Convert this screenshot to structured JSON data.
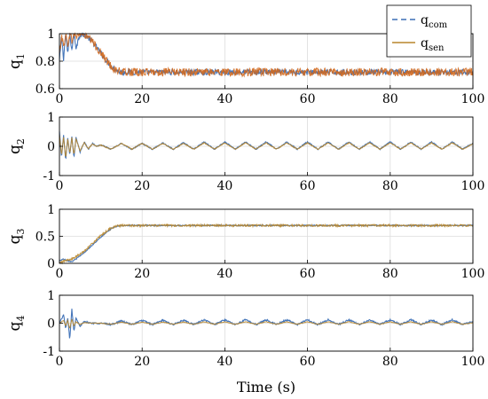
{
  "chart_data": [
    {
      "type": "line",
      "ylabel_main": "q",
      "ylabel_sub": "1",
      "xlim": [
        0,
        100
      ],
      "ylim": [
        0.6,
        1.0
      ],
      "xticks": [
        "0",
        "20",
        "40",
        "60",
        "80",
        "100"
      ],
      "yticks": [
        "0.6",
        "0.8",
        "1"
      ],
      "grid": true,
      "series": [
        {
          "name_main": "q",
          "name_sub": "com",
          "color": "#3b6fb6",
          "x": [
            0,
            0.5,
            1,
            1.5,
            2,
            2.5,
            3,
            3.5,
            4,
            5,
            6,
            7,
            8,
            9,
            10,
            11,
            12,
            13,
            14,
            15,
            16,
            18,
            20,
            25,
            30,
            40,
            50,
            60,
            70,
            80,
            90,
            100
          ],
          "y": [
            0.8,
            0.98,
            0.82,
            1.0,
            0.85,
            1.0,
            0.88,
            1.0,
            0.9,
            1.0,
            0.99,
            0.97,
            0.94,
            0.9,
            0.86,
            0.82,
            0.78,
            0.75,
            0.73,
            0.72,
            0.72,
            0.72,
            0.72,
            0.72,
            0.72,
            0.72,
            0.72,
            0.72,
            0.72,
            0.72,
            0.72,
            0.72
          ],
          "noise": 0.02
        },
        {
          "name_main": "q",
          "name_sub": "sen",
          "color": "#d2691e",
          "x": [
            0,
            0.5,
            1,
            1.5,
            2,
            2.5,
            3,
            3.5,
            4,
            5,
            6,
            7,
            8,
            9,
            10,
            11,
            12,
            13,
            14,
            15,
            16,
            18,
            20,
            25,
            30,
            40,
            50,
            60,
            70,
            80,
            90,
            100
          ],
          "y": [
            0.85,
            1.0,
            0.9,
            1.0,
            0.92,
            1.0,
            0.95,
            1.0,
            0.98,
            1.0,
            0.99,
            0.97,
            0.94,
            0.9,
            0.86,
            0.82,
            0.78,
            0.75,
            0.73,
            0.72,
            0.72,
            0.72,
            0.72,
            0.72,
            0.72,
            0.72,
            0.72,
            0.72,
            0.72,
            0.72,
            0.72,
            0.72
          ],
          "noise": 0.03
        }
      ]
    },
    {
      "type": "line",
      "ylabel_main": "q",
      "ylabel_sub": "2",
      "xlim": [
        0,
        100
      ],
      "ylim": [
        -1,
        1
      ],
      "xticks": [
        "0",
        "20",
        "40",
        "60",
        "80",
        "100"
      ],
      "yticks": [
        "-1",
        "0",
        "1"
      ],
      "grid": true,
      "series": [
        {
          "name_main": "q",
          "name_sub": "com",
          "color": "#3b6fb6",
          "x": [
            0,
            0.5,
            1,
            1.5,
            2,
            2.5,
            3,
            3.5,
            4,
            5,
            6,
            7,
            8,
            9,
            10,
            12.5,
            15,
            17.5,
            20,
            22.5,
            25,
            27.5,
            30,
            32.5,
            35,
            37.5,
            40,
            42.5,
            45,
            47.5,
            50,
            52.5,
            55,
            57.5,
            60,
            62.5,
            65,
            67.5,
            70,
            72.5,
            75,
            77.5,
            80,
            82.5,
            85,
            87.5,
            90,
            92.5,
            95,
            97.5,
            100
          ],
          "y": [
            0.5,
            -0.4,
            0.4,
            -0.5,
            0.3,
            -0.3,
            0.35,
            -0.4,
            0.3,
            -0.2,
            0.15,
            -0.1,
            0.1,
            0.0,
            0.05,
            -0.1,
            0.1,
            -0.1,
            0.1,
            -0.1,
            0.12,
            -0.1,
            0.12,
            -0.1,
            0.15,
            -0.1,
            0.15,
            -0.1,
            0.15,
            -0.1,
            0.15,
            -0.1,
            0.15,
            -0.1,
            0.15,
            -0.1,
            0.15,
            -0.1,
            0.15,
            -0.1,
            0.15,
            -0.1,
            0.15,
            -0.1,
            0.15,
            -0.1,
            0.15,
            -0.1,
            0.15,
            -0.1,
            0.1
          ],
          "noise": 0.02
        },
        {
          "name_main": "q",
          "name_sub": "sen",
          "color": "#b8862b",
          "x": [
            0,
            0.5,
            1,
            1.5,
            2,
            2.5,
            3,
            3.5,
            4,
            5,
            6,
            7,
            8,
            9,
            10,
            12.5,
            15,
            17.5,
            20,
            22.5,
            25,
            27.5,
            30,
            32.5,
            35,
            37.5,
            40,
            42.5,
            45,
            47.5,
            50,
            52.5,
            55,
            57.5,
            60,
            62.5,
            65,
            67.5,
            70,
            72.5,
            75,
            77.5,
            80,
            82.5,
            85,
            87.5,
            90,
            92.5,
            95,
            97.5,
            100
          ],
          "y": [
            0.4,
            -0.3,
            0.3,
            -0.4,
            0.25,
            -0.25,
            0.3,
            -0.3,
            0.25,
            -0.15,
            0.12,
            -0.08,
            0.08,
            0.0,
            0.04,
            -0.1,
            0.1,
            -0.1,
            0.1,
            -0.1,
            0.1,
            -0.1,
            0.1,
            -0.1,
            0.12,
            -0.1,
            0.12,
            -0.1,
            0.12,
            -0.1,
            0.12,
            -0.1,
            0.12,
            -0.1,
            0.12,
            -0.1,
            0.12,
            -0.1,
            0.12,
            -0.1,
            0.12,
            -0.1,
            0.12,
            -0.1,
            0.12,
            -0.1,
            0.12,
            -0.1,
            0.12,
            -0.1,
            0.08
          ],
          "noise": 0.015
        }
      ]
    },
    {
      "type": "line",
      "ylabel_main": "q",
      "ylabel_sub": "3",
      "xlim": [
        0,
        100
      ],
      "ylim": [
        0,
        1
      ],
      "xticks": [
        "0",
        "20",
        "40",
        "60",
        "80",
        "100"
      ],
      "yticks": [
        "0",
        "0.5",
        "1"
      ],
      "grid": true,
      "series": [
        {
          "name_main": "q",
          "name_sub": "com",
          "color": "#3b6fb6",
          "x": [
            0,
            1,
            2,
            3,
            4,
            5,
            6,
            7,
            8,
            9,
            10,
            11,
            12,
            13,
            14,
            15,
            16,
            20,
            30,
            40,
            50,
            60,
            70,
            80,
            90,
            100
          ],
          "y": [
            0.05,
            0.08,
            0.05,
            0.03,
            0.08,
            0.14,
            0.2,
            0.27,
            0.34,
            0.41,
            0.48,
            0.55,
            0.61,
            0.66,
            0.69,
            0.7,
            0.7,
            0.7,
            0.7,
            0.7,
            0.7,
            0.7,
            0.7,
            0.7,
            0.7,
            0.7
          ],
          "noise": 0.01
        },
        {
          "name_main": "q",
          "name_sub": "sen",
          "color": "#b8862b",
          "x": [
            0,
            1,
            2,
            3,
            4,
            5,
            6,
            7,
            8,
            9,
            10,
            11,
            12,
            13,
            14,
            15,
            16,
            20,
            30,
            40,
            50,
            60,
            70,
            80,
            90,
            100
          ],
          "y": [
            0.0,
            0.04,
            0.06,
            0.08,
            0.12,
            0.17,
            0.23,
            0.3,
            0.37,
            0.44,
            0.51,
            0.57,
            0.63,
            0.67,
            0.69,
            0.7,
            0.7,
            0.7,
            0.7,
            0.7,
            0.7,
            0.7,
            0.7,
            0.7,
            0.7,
            0.7
          ],
          "noise": 0.02
        }
      ]
    },
    {
      "type": "line",
      "ylabel_main": "q",
      "ylabel_sub": "4",
      "xlim": [
        0,
        100
      ],
      "ylim": [
        -1,
        1
      ],
      "xticks": [
        "0",
        "20",
        "40",
        "60",
        "80",
        "100"
      ],
      "yticks": [
        "-1",
        "0",
        "1"
      ],
      "grid": true,
      "series": [
        {
          "name_main": "q",
          "name_sub": "com",
          "color": "#3b6fb6",
          "x": [
            0,
            1,
            1.5,
            2,
            2.5,
            3,
            3.5,
            4,
            5,
            6,
            8,
            10,
            12.5,
            15,
            17.5,
            20,
            22.5,
            25,
            27.5,
            30,
            32.5,
            35,
            37.5,
            40,
            42.5,
            45,
            47.5,
            50,
            52.5,
            55,
            57.5,
            60,
            62.5,
            65,
            67.5,
            70,
            72.5,
            75,
            77.5,
            80,
            82.5,
            85,
            87.5,
            90,
            92.5,
            95,
            97.5,
            100
          ],
          "y": [
            0.0,
            0.3,
            -0.2,
            0.2,
            -0.6,
            0.5,
            -0.3,
            0.2,
            -0.1,
            0.05,
            0.0,
            0.0,
            -0.05,
            0.08,
            -0.05,
            0.1,
            -0.05,
            0.1,
            -0.05,
            0.1,
            -0.05,
            0.12,
            -0.05,
            0.12,
            -0.05,
            0.12,
            -0.05,
            0.12,
            -0.05,
            0.12,
            -0.05,
            0.12,
            -0.05,
            0.12,
            -0.05,
            0.12,
            -0.05,
            0.12,
            -0.05,
            0.12,
            -0.05,
            0.12,
            -0.05,
            0.12,
            -0.05,
            0.12,
            -0.05,
            0.05
          ],
          "noise": 0.03
        },
        {
          "name_main": "q",
          "name_sub": "sen",
          "color": "#b8862b",
          "x": [
            0,
            1,
            1.5,
            2,
            2.5,
            3,
            3.5,
            4,
            5,
            6,
            8,
            10,
            12.5,
            15,
            17.5,
            20,
            22.5,
            25,
            27.5,
            30,
            32.5,
            35,
            37.5,
            40,
            42.5,
            45,
            47.5,
            50,
            52.5,
            55,
            57.5,
            60,
            62.5,
            65,
            67.5,
            70,
            72.5,
            75,
            77.5,
            80,
            82.5,
            85,
            87.5,
            90,
            92.5,
            95,
            97.5,
            100
          ],
          "y": [
            0.0,
            0.1,
            -0.1,
            0.1,
            -0.2,
            0.15,
            -0.1,
            0.05,
            -0.05,
            0.02,
            0.0,
            0.0,
            -0.04,
            0.04,
            -0.04,
            0.04,
            -0.04,
            0.04,
            -0.04,
            0.04,
            -0.04,
            0.05,
            -0.04,
            0.05,
            -0.04,
            0.05,
            -0.04,
            0.05,
            -0.04,
            0.05,
            -0.04,
            0.05,
            -0.04,
            0.05,
            -0.04,
            0.05,
            -0.04,
            0.05,
            -0.04,
            0.05,
            -0.04,
            0.05,
            -0.04,
            0.05,
            -0.04,
            0.05,
            -0.04,
            0.02
          ],
          "noise": 0.008
        }
      ]
    }
  ],
  "xlabel": "Time (s)",
  "legend": {
    "placement": "top-right",
    "entries": [
      {
        "main": "q",
        "sub": "com",
        "color": "#3b6fb6",
        "dash": "6,4"
      },
      {
        "main": "q",
        "sub": "sen",
        "color": "#b8862b",
        "dash": ""
      }
    ]
  }
}
